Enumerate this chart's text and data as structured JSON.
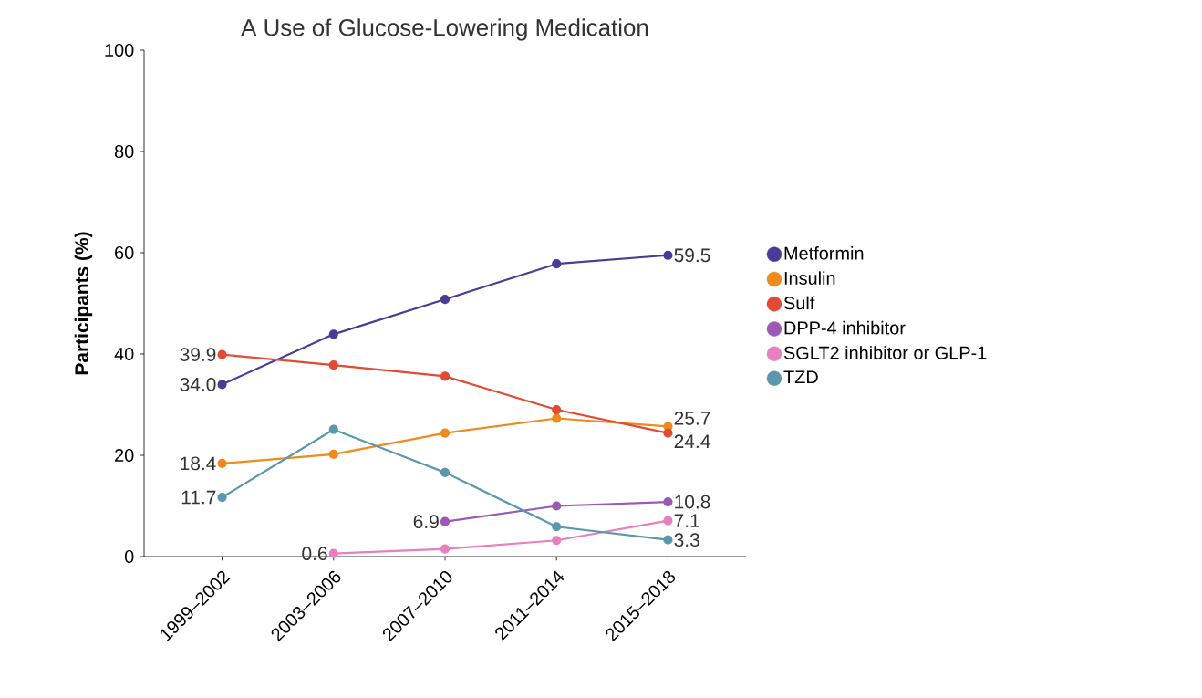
{
  "chart_data": {
    "type": "line",
    "title": "A Use of Glucose-Lowering Medication",
    "ylabel": "Participants (%)",
    "categories": [
      "1999–2002",
      "2003–2006",
      "2007–2010",
      "2011–2014",
      "2015–2018"
    ],
    "ylim": [
      0,
      100
    ],
    "yticks": [
      0,
      20,
      40,
      60,
      80,
      100
    ],
    "grid": false,
    "legend": "right",
    "marker": "circle",
    "line_style": "solid",
    "series": [
      {
        "name": "Metformin",
        "color": "#4b3a96",
        "values": [
          34.0,
          43.9,
          50.8,
          57.8,
          59.5
        ],
        "value_labels": [
          "34.0",
          null,
          null,
          null,
          "59.5"
        ]
      },
      {
        "name": "Insulin",
        "color": "#f08a1c",
        "values": [
          18.4,
          20.2,
          24.4,
          27.3,
          25.7
        ],
        "value_labels": [
          "18.4",
          null,
          null,
          null,
          "25.7"
        ]
      },
      {
        "name": "Sulf",
        "color": "#e24a33",
        "values": [
          39.9,
          37.8,
          35.6,
          29.0,
          24.4
        ],
        "value_labels": [
          "39.9",
          null,
          null,
          null,
          "24.4"
        ]
      },
      {
        "name": "DPP-4 inhibitor",
        "color": "#9b59b6",
        "values": [
          null,
          null,
          6.9,
          10.0,
          10.8
        ],
        "value_labels": [
          null,
          null,
          "6.9",
          null,
          "10.8"
        ]
      },
      {
        "name": "SGLT2 inhibitor or GLP-1",
        "color": "#e87fbf",
        "values": [
          null,
          0.6,
          1.5,
          3.2,
          7.1
        ],
        "value_labels": [
          null,
          "0.6",
          null,
          null,
          "7.1"
        ]
      },
      {
        "name": "TZD",
        "color": "#5b98ad",
        "values": [
          11.7,
          25.1,
          16.6,
          5.9,
          3.3
        ],
        "value_labels": [
          "11.7",
          null,
          null,
          null,
          "3.3"
        ]
      }
    ]
  }
}
